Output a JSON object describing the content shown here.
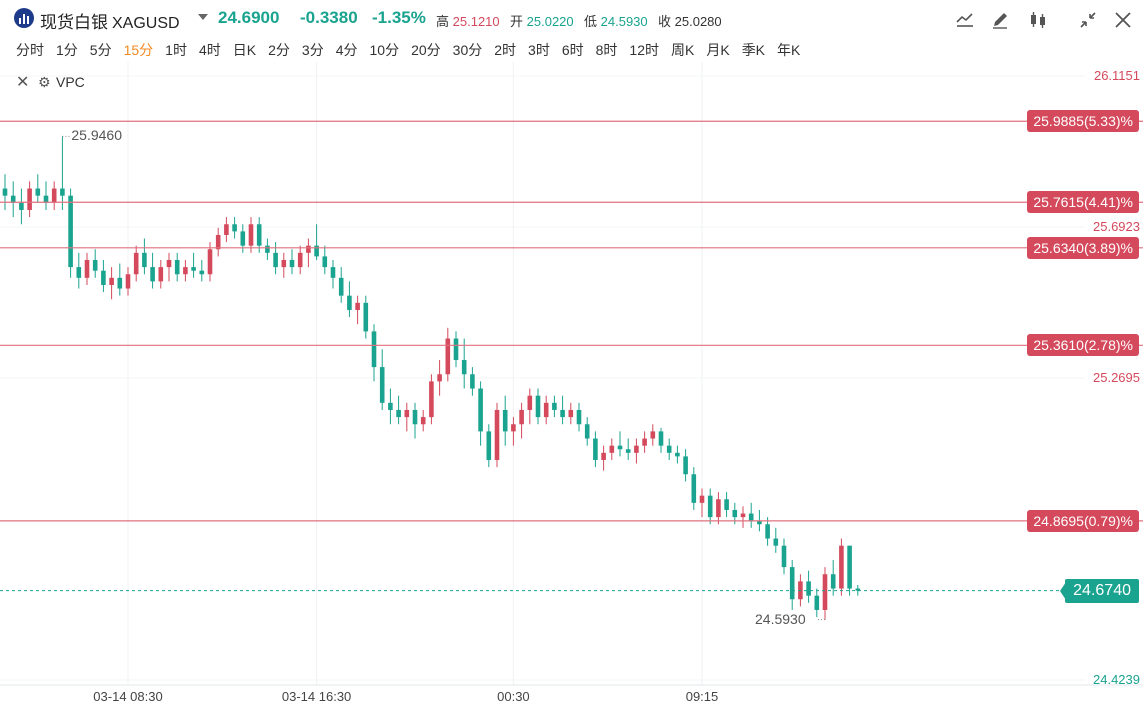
{
  "header": {
    "name": "现货白银",
    "code": "XAGUSD",
    "last": "24.6900",
    "change": "-0.3380",
    "change_pct": "-1.35%",
    "high_label": "高",
    "high": "25.1210",
    "open_label": "开",
    "open": "25.0220",
    "low_label": "低",
    "low": "24.5930",
    "close_label": "收",
    "close": "25.0280",
    "up_color": "#d4495c",
    "down_color": "#1aa38f"
  },
  "toolbar": [
    "line-chart-icon",
    "pencil-icon",
    "candles-icon",
    "collapse-icon",
    "close-icon"
  ],
  "periods": [
    "分时",
    "1分",
    "5分",
    "15分",
    "1时",
    "4时",
    "日K",
    "2分",
    "3分",
    "4分",
    "10分",
    "20分",
    "30分",
    "2时",
    "3时",
    "6时",
    "8时",
    "12时",
    "周K",
    "月K",
    "季K",
    "年K"
  ],
  "active_period": "15分",
  "indicator": {
    "name": "VPC"
  },
  "chart_data": {
    "type": "candlestick",
    "y_axis_labels": [
      "26.1151",
      "25.6923",
      "25.2695",
      "24.4239"
    ],
    "y_axis_label_values": [
      26.1151,
      25.6923,
      25.2695,
      24.4239
    ],
    "ylim": [
      24.4239,
      26.1151
    ],
    "x_ticks": [
      "03-14 08:30",
      "03-14 16:30",
      "00:30",
      "09:15"
    ],
    "x_tick_index": [
      15,
      38,
      62,
      85
    ],
    "levels": [
      {
        "value": 25.9885,
        "label": "25.9885(5.33)%"
      },
      {
        "value": 25.7615,
        "label": "25.7615(4.41)%"
      },
      {
        "value": 25.634,
        "label": "25.6340(3.89)%"
      },
      {
        "value": 25.361,
        "label": "25.3610(2.78)%"
      },
      {
        "value": 24.8695,
        "label": "24.8695(0.79)%"
      }
    ],
    "last_price": {
      "value": 24.674,
      "label": "24.6740"
    },
    "extremes": [
      {
        "label": "25.9460",
        "value": 25.946,
        "index": 7
      },
      {
        "label": "24.5930",
        "value": 24.593,
        "index": 100
      }
    ],
    "candles_ohlc": [
      [
        25.8,
        25.84,
        25.74,
        25.78
      ],
      [
        25.78,
        25.82,
        25.72,
        25.76
      ],
      [
        25.76,
        25.8,
        25.7,
        25.74
      ],
      [
        25.74,
        25.82,
        25.72,
        25.8
      ],
      [
        25.8,
        25.84,
        25.76,
        25.78
      ],
      [
        25.78,
        25.82,
        25.74,
        25.76
      ],
      [
        25.76,
        25.82,
        25.74,
        25.8
      ],
      [
        25.8,
        25.946,
        25.74,
        25.78
      ],
      [
        25.78,
        25.8,
        25.55,
        25.58
      ],
      [
        25.58,
        25.62,
        25.52,
        25.55
      ],
      [
        25.55,
        25.62,
        25.53,
        25.6
      ],
      [
        25.6,
        25.63,
        25.55,
        25.57
      ],
      [
        25.57,
        25.6,
        25.51,
        25.53
      ],
      [
        25.53,
        25.58,
        25.49,
        25.55
      ],
      [
        25.55,
        25.59,
        25.5,
        25.52
      ],
      [
        25.52,
        25.58,
        25.5,
        25.56
      ],
      [
        25.56,
        25.64,
        25.54,
        25.62
      ],
      [
        25.62,
        25.66,
        25.56,
        25.58
      ],
      [
        25.58,
        25.62,
        25.52,
        25.54
      ],
      [
        25.54,
        25.6,
        25.52,
        25.58
      ],
      [
        25.58,
        25.62,
        25.54,
        25.6
      ],
      [
        25.6,
        25.62,
        25.54,
        25.56
      ],
      [
        25.56,
        25.6,
        25.54,
        25.58
      ],
      [
        25.58,
        25.62,
        25.55,
        25.57
      ],
      [
        25.57,
        25.6,
        25.54,
        25.56
      ],
      [
        25.56,
        25.65,
        25.54,
        25.63
      ],
      [
        25.63,
        25.69,
        25.61,
        25.67
      ],
      [
        25.67,
        25.72,
        25.65,
        25.7
      ],
      [
        25.7,
        25.72,
        25.66,
        25.68
      ],
      [
        25.68,
        25.7,
        25.62,
        25.64
      ],
      [
        25.64,
        25.72,
        25.62,
        25.7
      ],
      [
        25.7,
        25.72,
        25.62,
        25.64
      ],
      [
        25.64,
        25.66,
        25.6,
        25.62
      ],
      [
        25.62,
        25.65,
        25.56,
        25.58
      ],
      [
        25.58,
        25.62,
        25.55,
        25.6
      ],
      [
        25.6,
        25.63,
        25.56,
        25.58
      ],
      [
        25.58,
        25.64,
        25.56,
        25.62
      ],
      [
        25.62,
        25.66,
        25.58,
        25.64
      ],
      [
        25.64,
        25.7,
        25.6,
        25.61
      ],
      [
        25.61,
        25.64,
        25.56,
        25.58
      ],
      [
        25.58,
        25.6,
        25.52,
        25.55
      ],
      [
        25.55,
        25.58,
        25.48,
        25.5
      ],
      [
        25.5,
        25.54,
        25.44,
        25.46
      ],
      [
        25.46,
        25.5,
        25.42,
        25.48
      ],
      [
        25.48,
        25.5,
        25.38,
        25.4
      ],
      [
        25.4,
        25.42,
        25.26,
        25.3
      ],
      [
        25.3,
        25.35,
        25.18,
        25.2
      ],
      [
        25.2,
        25.24,
        25.14,
        25.18
      ],
      [
        25.18,
        25.22,
        25.14,
        25.16
      ],
      [
        25.16,
        25.2,
        25.12,
        25.18
      ],
      [
        25.18,
        25.2,
        25.1,
        25.14
      ],
      [
        25.14,
        25.18,
        25.12,
        25.16
      ],
      [
        25.16,
        25.28,
        25.14,
        25.26
      ],
      [
        25.26,
        25.32,
        25.22,
        25.28
      ],
      [
        25.28,
        25.41,
        25.26,
        25.38
      ],
      [
        25.38,
        25.4,
        25.3,
        25.32
      ],
      [
        25.32,
        25.38,
        25.24,
        25.28
      ],
      [
        25.28,
        25.3,
        25.22,
        25.24
      ],
      [
        25.24,
        25.26,
        25.08,
        25.12
      ],
      [
        25.12,
        25.14,
        25.02,
        25.04
      ],
      [
        25.04,
        25.2,
        25.02,
        25.18
      ],
      [
        25.18,
        25.22,
        25.08,
        25.12
      ],
      [
        25.12,
        25.16,
        25.08,
        25.14
      ],
      [
        25.14,
        25.2,
        25.1,
        25.18
      ],
      [
        25.18,
        25.24,
        25.14,
        25.22
      ],
      [
        25.22,
        25.24,
        25.14,
        25.16
      ],
      [
        25.16,
        25.22,
        25.14,
        25.2
      ],
      [
        25.2,
        25.22,
        25.16,
        25.18
      ],
      [
        25.18,
        25.22,
        25.14,
        25.16
      ],
      [
        25.16,
        25.2,
        25.14,
        25.18
      ],
      [
        25.18,
        25.2,
        25.12,
        25.14
      ],
      [
        25.14,
        25.16,
        25.08,
        25.1
      ],
      [
        25.1,
        25.12,
        25.02,
        25.04
      ],
      [
        25.04,
        25.08,
        25.01,
        25.06
      ],
      [
        25.06,
        25.1,
        25.04,
        25.08
      ],
      [
        25.08,
        25.12,
        25.05,
        25.07
      ],
      [
        25.07,
        25.1,
        25.04,
        25.06
      ],
      [
        25.06,
        25.1,
        25.03,
        25.08
      ],
      [
        25.08,
        25.12,
        25.06,
        25.1
      ],
      [
        25.1,
        25.14,
        25.08,
        25.12
      ],
      [
        25.12,
        25.13,
        25.06,
        25.08
      ],
      [
        25.08,
        25.1,
        25.04,
        25.06
      ],
      [
        25.06,
        25.08,
        25.03,
        25.05
      ],
      [
        25.05,
        25.07,
        24.98,
        25.0
      ],
      [
        25.0,
        25.02,
        24.9,
        24.92
      ],
      [
        24.92,
        24.96,
        24.88,
        24.94
      ],
      [
        24.94,
        24.96,
        24.86,
        24.88
      ],
      [
        24.88,
        24.95,
        24.86,
        24.93
      ],
      [
        24.93,
        24.95,
        24.88,
        24.9
      ],
      [
        24.9,
        24.92,
        24.86,
        24.88
      ],
      [
        24.88,
        24.91,
        24.85,
        24.89
      ],
      [
        24.89,
        24.92,
        24.85,
        24.87
      ],
      [
        24.87,
        24.9,
        24.84,
        24.86
      ],
      [
        24.86,
        24.88,
        24.8,
        24.82
      ],
      [
        24.82,
        24.85,
        24.78,
        24.8
      ],
      [
        24.8,
        24.82,
        24.72,
        24.74
      ],
      [
        24.74,
        24.76,
        24.62,
        24.65
      ],
      [
        24.65,
        24.72,
        24.63,
        24.7
      ],
      [
        24.7,
        24.73,
        24.64,
        24.66
      ],
      [
        24.66,
        24.68,
        24.6,
        24.62
      ],
      [
        24.62,
        24.74,
        24.593,
        24.72
      ],
      [
        24.72,
        24.76,
        24.66,
        24.68
      ],
      [
        24.68,
        24.82,
        24.66,
        24.8
      ],
      [
        24.8,
        24.8,
        24.66,
        24.68
      ],
      [
        24.68,
        24.69,
        24.66,
        24.674
      ]
    ]
  }
}
